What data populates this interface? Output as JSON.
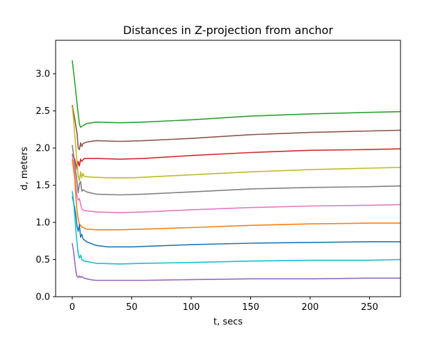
{
  "chart_data": {
    "type": "line",
    "title": "Distances in Z-projection from anchor",
    "xlabel": "t, secs",
    "ylabel": "d, meters",
    "xlim": [
      -14,
      276
    ],
    "ylim": [
      0.0,
      3.45
    ],
    "xticks": [
      0,
      50,
      100,
      150,
      200,
      250
    ],
    "xtick_labels": [
      "0",
      "50",
      "100",
      "150",
      "200",
      "250"
    ],
    "yticks": [
      0.0,
      0.5,
      1.0,
      1.5,
      2.0,
      2.5,
      3.0
    ],
    "ytick_labels": [
      "0.0",
      "0.5",
      "1.0",
      "1.5",
      "2.0",
      "2.5",
      "3.0"
    ],
    "grid": false,
    "legend": "none",
    "series": [
      {
        "color": "#2ca02c",
        "points": [
          [
            0,
            3.18
          ],
          [
            2,
            2.9
          ],
          [
            4,
            2.6
          ],
          [
            6,
            2.32
          ],
          [
            7,
            2.28
          ],
          [
            9,
            2.3
          ],
          [
            12,
            2.33
          ],
          [
            20,
            2.35
          ],
          [
            40,
            2.34
          ],
          [
            60,
            2.35
          ],
          [
            100,
            2.38
          ],
          [
            150,
            2.43
          ],
          [
            200,
            2.46
          ],
          [
            250,
            2.48
          ],
          [
            276,
            2.49
          ]
        ]
      },
      {
        "color": "#8c564b",
        "points": [
          [
            0,
            2.58
          ],
          [
            2,
            2.4
          ],
          [
            4,
            2.2
          ],
          [
            5,
            2.0
          ],
          [
            6,
            1.98
          ],
          [
            7,
            2.07
          ],
          [
            8,
            2.02
          ],
          [
            9,
            2.06
          ],
          [
            12,
            2.08
          ],
          [
            20,
            2.1
          ],
          [
            40,
            2.09
          ],
          [
            60,
            2.1
          ],
          [
            100,
            2.13
          ],
          [
            150,
            2.18
          ],
          [
            200,
            2.21
          ],
          [
            250,
            2.23
          ],
          [
            276,
            2.24
          ]
        ]
      },
      {
        "color": "#d62728",
        "points": [
          [
            0,
            1.92
          ],
          [
            2,
            1.85
          ],
          [
            3,
            1.78
          ],
          [
            4,
            1.72
          ],
          [
            5,
            1.82
          ],
          [
            6,
            1.76
          ],
          [
            7,
            1.85
          ],
          [
            8,
            1.82
          ],
          [
            10,
            1.86
          ],
          [
            20,
            1.86
          ],
          [
            40,
            1.85
          ],
          [
            60,
            1.86
          ],
          [
            100,
            1.9
          ],
          [
            150,
            1.94
          ],
          [
            200,
            1.97
          ],
          [
            250,
            1.98
          ],
          [
            276,
            1.99
          ]
        ]
      },
      {
        "color": "#bcbd22",
        "points": [
          [
            0,
            2.56
          ],
          [
            1,
            2.4
          ],
          [
            2,
            2.2
          ],
          [
            3,
            2.0
          ],
          [
            4,
            1.8
          ],
          [
            5,
            1.62
          ],
          [
            6,
            1.56
          ],
          [
            7,
            1.68
          ],
          [
            8,
            1.6
          ],
          [
            9,
            1.66
          ],
          [
            10,
            1.62
          ],
          [
            15,
            1.61
          ],
          [
            30,
            1.6
          ],
          [
            50,
            1.6
          ],
          [
            100,
            1.64
          ],
          [
            150,
            1.68
          ],
          [
            200,
            1.71
          ],
          [
            250,
            1.73
          ],
          [
            276,
            1.74
          ]
        ]
      },
      {
        "color": "#7f7f7f",
        "points": [
          [
            0,
            2.04
          ],
          [
            2,
            1.8
          ],
          [
            4,
            1.55
          ],
          [
            5,
            1.4
          ],
          [
            6,
            1.52
          ],
          [
            7,
            1.55
          ],
          [
            8,
            1.42
          ],
          [
            9,
            1.44
          ],
          [
            12,
            1.41
          ],
          [
            20,
            1.38
          ],
          [
            40,
            1.37
          ],
          [
            60,
            1.38
          ],
          [
            100,
            1.41
          ],
          [
            150,
            1.45
          ],
          [
            200,
            1.47
          ],
          [
            250,
            1.48
          ],
          [
            276,
            1.49
          ]
        ]
      },
      {
        "color": "#e377c2",
        "points": [
          [
            0,
            1.9
          ],
          [
            2,
            1.7
          ],
          [
            3,
            1.5
          ],
          [
            4,
            1.35
          ],
          [
            5,
            1.3
          ],
          [
            6,
            1.32
          ],
          [
            7,
            1.25
          ],
          [
            8,
            1.18
          ],
          [
            10,
            1.16
          ],
          [
            20,
            1.14
          ],
          [
            40,
            1.13
          ],
          [
            60,
            1.14
          ],
          [
            100,
            1.17
          ],
          [
            150,
            1.2
          ],
          [
            200,
            1.22
          ],
          [
            250,
            1.23
          ],
          [
            276,
            1.24
          ]
        ]
      },
      {
        "color": "#ff7f0e",
        "points": [
          [
            0,
            1.85
          ],
          [
            2,
            1.6
          ],
          [
            3,
            1.35
          ],
          [
            4,
            1.15
          ],
          [
            5,
            1.05
          ],
          [
            6,
            0.98
          ],
          [
            8,
            0.94
          ],
          [
            12,
            0.91
          ],
          [
            20,
            0.9
          ],
          [
            40,
            0.9
          ],
          [
            60,
            0.91
          ],
          [
            100,
            0.93
          ],
          [
            150,
            0.96
          ],
          [
            200,
            0.98
          ],
          [
            250,
            0.99
          ],
          [
            276,
            0.99
          ]
        ]
      },
      {
        "color": "#1f77b4",
        "points": [
          [
            0,
            1.35
          ],
          [
            2,
            1.2
          ],
          [
            3,
            1.1
          ],
          [
            4,
            0.95
          ],
          [
            5,
            0.88
          ],
          [
            6,
            0.97
          ],
          [
            7,
            0.8
          ],
          [
            8,
            0.84
          ],
          [
            9,
            0.78
          ],
          [
            12,
            0.74
          ],
          [
            20,
            0.69
          ],
          [
            30,
            0.67
          ],
          [
            50,
            0.67
          ],
          [
            100,
            0.7
          ],
          [
            150,
            0.72
          ],
          [
            200,
            0.73
          ],
          [
            250,
            0.74
          ],
          [
            276,
            0.74
          ]
        ]
      },
      {
        "color": "#17becf",
        "points": [
          [
            0,
            1.42
          ],
          [
            1,
            1.3
          ],
          [
            2,
            1.1
          ],
          [
            3,
            0.9
          ],
          [
            4,
            0.72
          ],
          [
            5,
            0.58
          ],
          [
            6,
            0.52
          ],
          [
            7,
            0.56
          ],
          [
            8,
            0.5
          ],
          [
            10,
            0.48
          ],
          [
            20,
            0.45
          ],
          [
            40,
            0.44
          ],
          [
            60,
            0.45
          ],
          [
            100,
            0.46
          ],
          [
            150,
            0.48
          ],
          [
            200,
            0.49
          ],
          [
            250,
            0.49
          ],
          [
            276,
            0.5
          ]
        ]
      },
      {
        "color": "#9467bd",
        "points": [
          [
            0,
            0.72
          ],
          [
            1,
            0.62
          ],
          [
            2,
            0.48
          ],
          [
            3,
            0.35
          ],
          [
            4,
            0.27
          ],
          [
            5,
            0.26
          ],
          [
            6,
            0.28
          ],
          [
            7,
            0.26
          ],
          [
            8,
            0.27
          ],
          [
            10,
            0.25
          ],
          [
            15,
            0.23
          ],
          [
            20,
            0.22
          ],
          [
            40,
            0.22
          ],
          [
            60,
            0.22
          ],
          [
            100,
            0.23
          ],
          [
            150,
            0.24
          ],
          [
            200,
            0.24
          ],
          [
            250,
            0.25
          ],
          [
            276,
            0.25
          ]
        ]
      }
    ]
  }
}
